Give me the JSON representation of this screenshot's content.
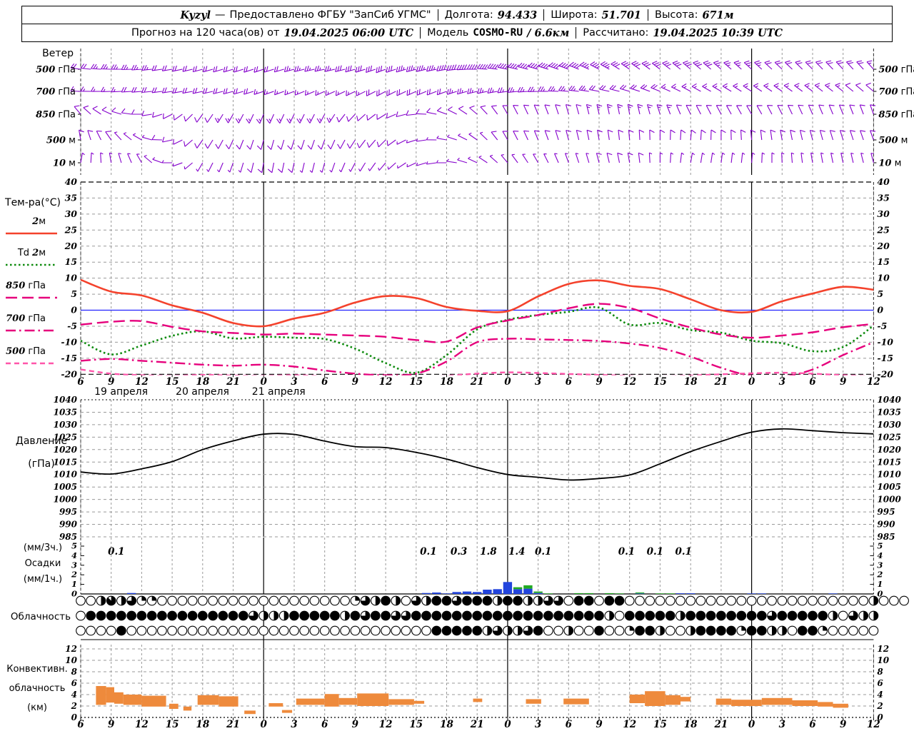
{
  "header": {
    "station": "Kyzyl",
    "dash": "—",
    "provider": "Предоставлено ФГБУ \"ЗапСиб УГМС\"",
    "lon_label": "Долгота:",
    "lon": "94.433",
    "lat_label": "Широта:",
    "lat": "51.701",
    "alt_label": "Высота:",
    "alt": "671м",
    "forecast_pre": "Прогноз на 120 часа(ов) от",
    "forecast_time": "19.04.2025 06:00 UTC",
    "model_label": "Модель",
    "model": "COSMO-RU",
    "model_res": "/ 6.6км",
    "calc_label": "Рассчитано:",
    "calc_time": "19.04.2025 10:39 UTC"
  },
  "panels": {
    "wind_caption": "Ветер",
    "wind_levels": [
      "500 гПа",
      "700 гПа",
      "850 гПа",
      "500 м",
      "10 м"
    ],
    "temp_caption": "Тем-ра(°C)",
    "temp_legend": [
      "2м",
      "Td 2м",
      "850 гПа",
      "700 гПа",
      "500 гПа"
    ],
    "pressure_caption": [
      "Давление",
      "(гПа)"
    ],
    "precip_caption": [
      "(мм/3ч.)",
      "Осадки",
      "(мм/1ч.)"
    ],
    "cloud_caption": "Облачность",
    "conv_caption": [
      "Конвективн.",
      "облачность",
      "(км)"
    ],
    "temp_ticks": [
      40,
      35,
      30,
      25,
      20,
      15,
      10,
      5,
      0,
      -5,
      -10,
      -15,
      -20
    ],
    "pressure_ticks": [
      1040,
      1035,
      1030,
      1025,
      1020,
      1015,
      1010,
      1005,
      1000,
      995,
      990,
      985
    ],
    "precip_ticks": [
      5,
      4,
      3,
      2,
      1,
      0
    ],
    "conv_ticks": [
      12,
      10,
      8,
      6,
      4,
      2,
      0
    ]
  },
  "axis": {
    "hour_labels": [
      "6",
      "9",
      "12",
      "15",
      "18",
      "21",
      "0",
      "3",
      "6",
      "9",
      "12",
      "15",
      "18",
      "21",
      "0",
      "3",
      "6",
      "9",
      "12",
      "15",
      "18",
      "21",
      "0",
      "3",
      "6",
      "9",
      "12"
    ],
    "date_labels": [
      {
        "text": "19 апреля",
        "hour": 2.5
      },
      {
        "text": "20 апреля",
        "hour": 10.5
      },
      {
        "text": "21 апреля",
        "hour": 18.0
      }
    ],
    "day_boundary_hours": [
      18,
      42,
      66
    ],
    "total_hours": 78
  },
  "chart_data": [
    {
      "id": "wind_barbs",
      "type": "barbs",
      "title": "Ветер",
      "color": "#8400cc",
      "keyframe_hours": [
        0,
        6,
        12,
        18,
        24,
        30,
        36,
        42,
        48,
        54,
        60,
        66,
        72,
        78
      ],
      "rows": [
        {
          "level": "500 гПа",
          "dir": [
            278,
            266,
            255,
            252,
            258,
            250,
            260,
            281,
            290,
            304,
            310,
            312,
            315,
            318
          ],
          "spd": [
            22,
            24,
            18,
            19,
            26,
            31,
            38,
            42,
            40,
            31,
            30,
            23,
            20,
            17
          ]
        },
        {
          "level": "700 гПа",
          "dir": [
            272,
            265,
            258,
            252,
            246,
            242,
            250,
            262,
            275,
            286,
            298,
            303,
            307,
            310
          ],
          "spd": [
            16,
            18,
            20,
            17,
            15,
            18,
            22,
            25,
            24,
            20,
            16,
            14,
            13,
            12
          ]
        },
        {
          "level": "850 гПа",
          "dir": [
            320,
            270,
            216,
            203,
            208,
            238,
            290,
            330,
            344,
            350,
            334,
            330,
            336,
            340
          ],
          "spd": [
            12,
            10,
            12,
            14,
            13,
            10,
            8,
            10,
            12,
            14,
            12,
            10,
            11,
            12
          ]
        },
        {
          "level": "500 м",
          "dir": [
            350,
            300,
            215,
            195,
            200,
            225,
            280,
            330,
            345,
            355,
            5,
            355,
            345,
            340
          ],
          "spd": [
            8,
            7,
            9,
            11,
            10,
            8,
            6,
            8,
            10,
            11,
            9,
            8,
            8,
            9
          ]
        },
        {
          "level": "10 м",
          "dir": [
            10,
            330,
            210,
            190,
            195,
            220,
            270,
            320,
            340,
            350,
            10,
            5,
            350,
            345
          ],
          "spd": [
            5,
            4,
            6,
            8,
            7,
            5,
            4,
            5,
            7,
            8,
            6,
            5,
            5,
            6
          ]
        }
      ]
    },
    {
      "id": "temperature",
      "type": "line",
      "title": "Тем-ра(°C)",
      "ylim": [
        -20,
        40
      ],
      "grid": true,
      "zero_line_color": "#2222ff",
      "x_hours": [
        0,
        3,
        6,
        9,
        12,
        15,
        18,
        21,
        24,
        27,
        30,
        33,
        36,
        39,
        42,
        45,
        48,
        51,
        54,
        57,
        60,
        63,
        66,
        69,
        72,
        75,
        78
      ],
      "series": [
        {
          "name": "2м",
          "color": "#f4422c",
          "dash": "solid",
          "values": [
            9.5,
            5.8,
            4.6,
            1.5,
            -0.8,
            -4.0,
            -5.0,
            -2.6,
            -0.8,
            2.4,
            4.4,
            3.8,
            1.0,
            -0.2,
            -0.3,
            4.3,
            8.2,
            9.3,
            7.6,
            6.6,
            3.4,
            0.0,
            -0.5,
            2.8,
            5.2,
            7.3,
            6.4
          ]
        },
        {
          "name": "Td 2м",
          "color": "#0c8a0c",
          "dash": "dot",
          "values": [
            -9.5,
            -13.8,
            -11.0,
            -8.0,
            -6.6,
            -8.8,
            -8.3,
            -8.6,
            -9.0,
            -12.0,
            -16.5,
            -19.5,
            -14.0,
            -6.0,
            -3.0,
            -1.5,
            -0.5,
            0.8,
            -4.5,
            -4.0,
            -6.2,
            -7.0,
            -9.5,
            -10.3,
            -12.8,
            -11.5,
            -4.8
          ]
        },
        {
          "name": "850 гПа",
          "color": "#e6007c",
          "dash": "longdash",
          "values": [
            -4.5,
            -3.6,
            -3.4,
            -5.2,
            -6.6,
            -7.1,
            -7.6,
            -7.3,
            -7.6,
            -7.9,
            -8.3,
            -9.3,
            -9.8,
            -5.4,
            -3.2,
            -1.5,
            0.6,
            2.0,
            0.7,
            -2.6,
            -5.4,
            -7.6,
            -8.6,
            -7.9,
            -6.9,
            -5.3,
            -4.3
          ]
        },
        {
          "name": "700 гПа",
          "color": "#e6007c",
          "dash": "dashdot",
          "values": [
            -15.8,
            -15.2,
            -15.8,
            -16.4,
            -17.0,
            -17.3,
            -17.0,
            -17.6,
            -18.8,
            -19.8,
            -20.3,
            -19.8,
            -16.0,
            -10.0,
            -8.9,
            -9.1,
            -9.3,
            -9.6,
            -10.4,
            -11.8,
            -14.5,
            -18.0,
            -20.5,
            -20.8,
            -18.5,
            -14.0,
            -10.0
          ]
        },
        {
          "name": "500 гПа",
          "color": "#ff55aa",
          "dash": "dash",
          "values": [
            -18.5,
            -19.8,
            -20.3,
            -20.5,
            -20.2,
            -20.4,
            -20.5,
            -20.3,
            -20.6,
            -20.8,
            -21.0,
            -21.0,
            -20.5,
            -19.8,
            -19.4,
            -19.6,
            -19.9,
            -20.2,
            -20.5,
            -20.6,
            -20.4,
            -20.0,
            -19.7,
            -19.5,
            -19.8,
            -20.3,
            -20.6
          ]
        }
      ]
    },
    {
      "id": "pressure",
      "type": "line",
      "title": "Давление (гПа)",
      "ylim": [
        985,
        1040
      ],
      "color": "#000000",
      "x_hours": [
        0,
        3,
        6,
        9,
        12,
        15,
        18,
        21,
        24,
        27,
        30,
        33,
        36,
        39,
        42,
        45,
        48,
        51,
        54,
        57,
        60,
        63,
        66,
        69,
        72,
        75,
        78
      ],
      "values": [
        1011,
        1010.2,
        1012.3,
        1015.2,
        1020,
        1023.5,
        1026.2,
        1026.1,
        1023.4,
        1021.2,
        1020.8,
        1018.9,
        1016.2,
        1012.8,
        1010,
        1008.9,
        1007.8,
        1008.4,
        1009.8,
        1014.3,
        1019.2,
        1023.3,
        1027,
        1028.3,
        1027.6,
        1026.8,
        1026.3
      ]
    },
    {
      "id": "precipitation",
      "type": "bar",
      "title": "Осадки (мм/1ч., подписи мм/3ч.)",
      "ylim": [
        0,
        5
      ],
      "rain_color": "#2244dd",
      "snow_color": "#22aa22",
      "labels_3h": [
        {
          "hour": 3.5,
          "text": "0.1"
        },
        {
          "hour": 34.2,
          "text": "0.1"
        },
        {
          "hour": 37.2,
          "text": "0.3"
        },
        {
          "hour": 40.1,
          "text": "1.8"
        },
        {
          "hour": 42.9,
          "text": "1.4"
        },
        {
          "hour": 45.5,
          "text": "0.1"
        },
        {
          "hour": 53.7,
          "text": "0.1"
        },
        {
          "hour": 56.5,
          "text": "0.1"
        },
        {
          "hour": 59.3,
          "text": "0.1"
        }
      ],
      "rain_hourly": [
        0,
        0,
        0,
        0,
        0,
        0.1,
        0,
        0,
        0,
        0,
        0,
        0,
        0,
        0,
        0,
        0,
        0,
        0,
        0,
        0,
        0,
        0,
        0,
        0,
        0,
        0,
        0,
        0,
        0,
        0,
        0,
        0,
        0,
        0,
        0.1,
        0.15,
        0.05,
        0.2,
        0.25,
        0.2,
        0.45,
        0.5,
        1.25,
        0.5,
        0.55,
        0.1,
        0,
        0,
        0,
        0,
        0,
        0,
        0,
        0,
        0,
        0.05,
        0,
        0,
        0,
        0.07,
        0.07,
        0,
        0,
        0,
        0,
        0,
        0.05,
        0.05,
        0,
        0,
        0,
        0,
        0,
        0,
        0.05,
        0,
        0,
        0,
        0
      ],
      "snow_hourly": [
        0,
        0,
        0,
        0,
        0,
        0,
        0,
        0,
        0,
        0,
        0,
        0,
        0,
        0,
        0,
        0,
        0,
        0,
        0,
        0,
        0,
        0,
        0,
        0,
        0,
        0,
        0,
        0,
        0,
        0,
        0,
        0,
        0,
        0,
        0,
        0,
        0,
        0,
        0,
        0,
        0,
        0,
        0,
        0.2,
        0.35,
        0.15,
        0.05,
        0,
        0,
        0.08,
        0.08,
        0,
        0.08,
        0.05,
        0,
        0.1,
        0,
        0.05,
        0.05,
        0,
        0,
        0,
        0,
        0,
        0,
        0,
        0,
        0,
        0,
        0,
        0,
        0,
        0,
        0,
        0,
        0,
        0,
        0,
        0
      ]
    },
    {
      "id": "cloudiness",
      "type": "octas",
      "title": "Облачность (октанты, почасовая)",
      "rows": [
        {
          "name": "high",
          "octas": "0047462200000000000000000002648406488688848844660880880000000000000000000000004000"
        },
        {
          "name": "middle",
          "octas": "0888888888888888864448888848688668888888888888888888408888848888888868888840644"
        },
        {
          "name": "low",
          "octas": "0000800000000000000000000000000000088888464468004008002884004888828844088200000"
        }
      ]
    },
    {
      "id": "convective_cloudiness",
      "type": "range-bar",
      "title": "Конвективн. облачность (км)",
      "ylim": [
        0,
        12
      ],
      "color": "#ee8a3c",
      "segments": [
        [
          1.5,
          2.5,
          2.2,
          5.5
        ],
        [
          2.5,
          3.3,
          2.6,
          5.3
        ],
        [
          3.3,
          4.2,
          2.4,
          4.4
        ],
        [
          4.2,
          6,
          2.2,
          4.0
        ],
        [
          6,
          8.4,
          1.9,
          3.8
        ],
        [
          8.7,
          9.6,
          1.5,
          2.4
        ],
        [
          10.1,
          10.9,
          1.2,
          1.9
        ],
        [
          11.5,
          13.6,
          2.2,
          3.9
        ],
        [
          13.6,
          15.5,
          1.9,
          3.7
        ],
        [
          16.1,
          17.2,
          0.6,
          1.2
        ],
        [
          18.5,
          19.9,
          1.9,
          2.5
        ],
        [
          19.8,
          20.8,
          0.8,
          1.3
        ],
        [
          21.2,
          24,
          2.2,
          3.3
        ],
        [
          24,
          25.4,
          1.9,
          4.1
        ],
        [
          25.4,
          27.2,
          2.2,
          3.4
        ],
        [
          27.2,
          30.3,
          2.0,
          4.2
        ],
        [
          30.3,
          32.8,
          2.2,
          3.2
        ],
        [
          32.8,
          33.8,
          2.4,
          2.9
        ],
        [
          38.6,
          39.5,
          2.7,
          3.3
        ],
        [
          43.8,
          45.3,
          2.4,
          3.2
        ],
        [
          47.5,
          50,
          2.3,
          3.3
        ],
        [
          54,
          55.5,
          2.5,
          4.0
        ],
        [
          55.5,
          57.5,
          2.0,
          4.6
        ],
        [
          57.5,
          59,
          2.2,
          3.9
        ],
        [
          59,
          60,
          2.8,
          3.6
        ],
        [
          62.5,
          64,
          2.2,
          3.3
        ],
        [
          64,
          67,
          2.0,
          3.1
        ],
        [
          67,
          70,
          2.2,
          3.4
        ],
        [
          70,
          72.5,
          2.0,
          3.0
        ],
        [
          72.5,
          74,
          1.9,
          2.7
        ],
        [
          74,
          75.5,
          1.7,
          2.4
        ]
      ]
    }
  ]
}
